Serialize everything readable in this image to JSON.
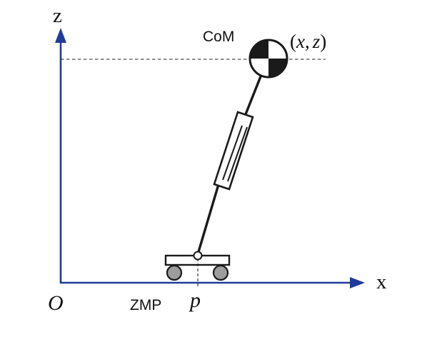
{
  "axes": {
    "z_label": "z",
    "x_label": "x",
    "origin_label": "O",
    "color": "#1f3c99"
  },
  "com": {
    "label": "CoM",
    "coord_open": "(",
    "coord_x": "x",
    "coord_sep": ",",
    "coord_z": "z",
    "coord_close": ")"
  },
  "zmp": {
    "label": "ZMP",
    "symbol": "p"
  }
}
